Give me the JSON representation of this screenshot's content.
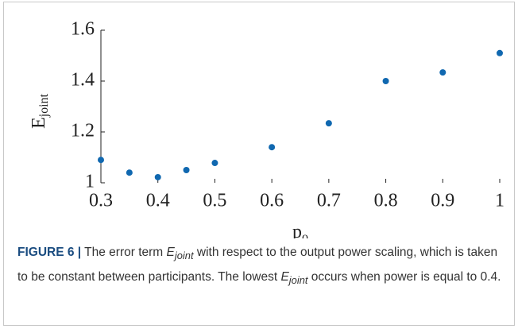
{
  "chart_data": {
    "type": "scatter",
    "xlabel": {
      "text": "p",
      "subscript": "o"
    },
    "ylabel": {
      "text": "E",
      "subscript": "joint"
    },
    "x": [
      0.3,
      0.35,
      0.4,
      0.45,
      0.5,
      0.6,
      0.7,
      0.8,
      0.9,
      1
    ],
    "series": [
      {
        "color": "#1068b0",
        "values": [
          1.09,
          1.04,
          1.022,
          1.05,
          1.078,
          1.14,
          1.234,
          1.4,
          1.434,
          1.51
        ]
      }
    ],
    "xlim": [
      0.3,
      1
    ],
    "ylim": [
      1,
      1.6
    ],
    "xticks": [
      0.3,
      0.4,
      0.5,
      0.6,
      0.7,
      0.8,
      0.9,
      1
    ],
    "yticks": [
      1,
      1.2,
      1.4,
      1.6
    ]
  },
  "caption": {
    "label": "FIGURE 6 |",
    "symbol": "E",
    "subscript": "joint",
    "text": [
      "The error term ",
      " with respect to the output power scaling, which is taken to be constant between participants. The lowest ",
      " occurs when power is equal to 0.4."
    ]
  }
}
